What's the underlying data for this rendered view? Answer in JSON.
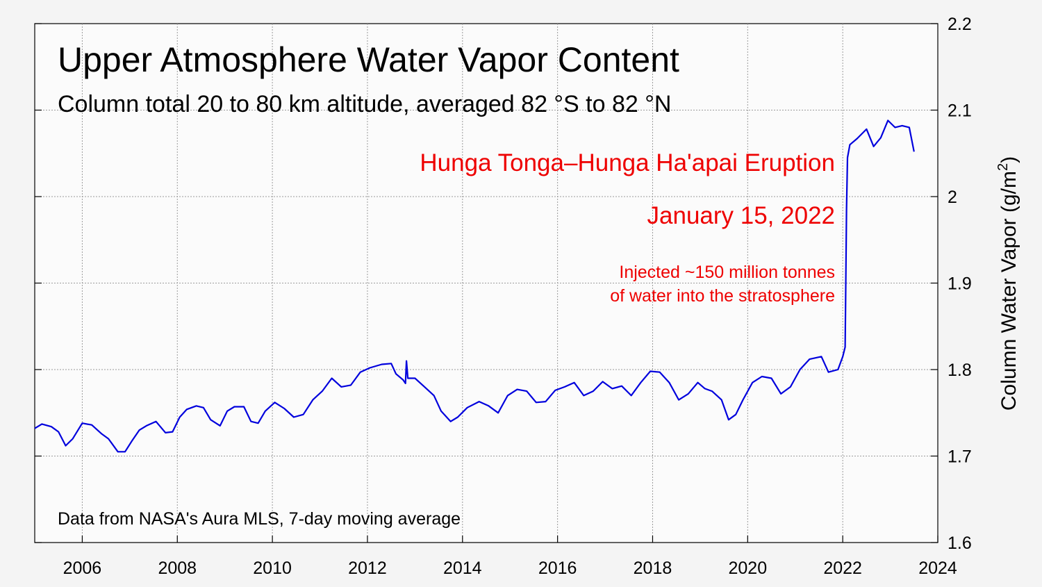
{
  "chart_data": {
    "type": "line",
    "title": "Upper Atmosphere Water Vapor Content",
    "subtitle": "Column total 20 to 80 km altitude, averaged 82 °S to 82 °N",
    "ylabel": "Column Water Vapor (g/m",
    "ylabel_sup": "2",
    "ylabel_close": ")",
    "xlim": [
      2005,
      2024
    ],
    "ylim": [
      1.6,
      2.2
    ],
    "x_ticks": [
      "2006",
      "2008",
      "2010",
      "2012",
      "2014",
      "2016",
      "2018",
      "2020",
      "2022",
      "2024"
    ],
    "y_ticks": [
      "1.6",
      "1.7",
      "1.8",
      "1.9",
      "2",
      "2.1",
      "2.2"
    ],
    "grid": true,
    "line_color": "#0000dd",
    "annotation_color": "#ee0000",
    "annotations": [
      "Hunga Tonga–Hunga Ha'apai Eruption",
      "January 15, 2022",
      "Injected ~150 million tonnes",
      "of water into the stratosphere"
    ],
    "footnote": "Data from NASA's Aura MLS, 7-day moving average",
    "series": [
      {
        "x": [
          2005.0,
          2005.15,
          2005.35,
          2005.5,
          2005.65,
          2005.8,
          2006.0,
          2006.2,
          2006.4,
          2006.55,
          2006.75,
          2006.9,
          2007.05,
          2007.2,
          2007.35,
          2007.55,
          2007.75,
          2007.9,
          2008.05,
          2008.2,
          2008.4,
          2008.55,
          2008.7,
          2008.9,
          2009.05,
          2009.2,
          2009.4,
          2009.55,
          2009.7,
          2009.85,
          2010.05,
          2010.25,
          2010.45,
          2010.65,
          2010.85,
          2011.05,
          2011.25,
          2011.45,
          2011.65,
          2011.85,
          2012.05,
          2012.3,
          2012.5,
          2012.6,
          2012.75,
          2012.8,
          2012.82,
          2012.85,
          2013.0,
          2013.2,
          2013.4,
          2013.55,
          2013.75,
          2013.9,
          2014.1,
          2014.35,
          2014.55,
          2014.75,
          2014.95,
          2015.15,
          2015.35,
          2015.55,
          2015.75,
          2015.95,
          2016.15,
          2016.35,
          2016.55,
          2016.75,
          2016.95,
          2017.15,
          2017.35,
          2017.55,
          2017.75,
          2017.95,
          2018.15,
          2018.35,
          2018.55,
          2018.75,
          2018.95,
          2019.1,
          2019.25,
          2019.45,
          2019.6,
          2019.75,
          2019.9,
          2020.1,
          2020.3,
          2020.5,
          2020.7,
          2020.9,
          2021.1,
          2021.3,
          2021.55,
          2021.7,
          2021.9,
          2022.0,
          2022.05,
          2022.06,
          2022.08,
          2022.1,
          2022.15,
          2022.3,
          2022.5,
          2022.65,
          2022.8,
          2022.95,
          2023.1,
          2023.25,
          2023.4,
          2023.5
        ],
        "y": [
          1.732,
          1.737,
          1.734,
          1.728,
          1.712,
          1.72,
          1.738,
          1.736,
          1.726,
          1.72,
          1.705,
          1.705,
          1.718,
          1.73,
          1.735,
          1.74,
          1.727,
          1.728,
          1.745,
          1.754,
          1.758,
          1.756,
          1.742,
          1.735,
          1.752,
          1.757,
          1.757,
          1.74,
          1.738,
          1.752,
          1.762,
          1.755,
          1.745,
          1.748,
          1.765,
          1.775,
          1.79,
          1.78,
          1.782,
          1.797,
          1.802,
          1.806,
          1.807,
          1.795,
          1.788,
          1.784,
          1.81,
          1.79,
          1.79,
          1.78,
          1.77,
          1.752,
          1.74,
          1.745,
          1.756,
          1.763,
          1.758,
          1.75,
          1.77,
          1.777,
          1.775,
          1.762,
          1.763,
          1.776,
          1.78,
          1.785,
          1.77,
          1.775,
          1.786,
          1.778,
          1.781,
          1.77,
          1.785,
          1.798,
          1.797,
          1.785,
          1.765,
          1.772,
          1.785,
          1.778,
          1.775,
          1.765,
          1.742,
          1.748,
          1.765,
          1.785,
          1.792,
          1.79,
          1.772,
          1.78,
          1.8,
          1.812,
          1.815,
          1.797,
          1.8,
          1.815,
          1.826,
          1.88,
          1.985,
          2.045,
          2.06,
          2.067,
          2.078,
          2.058,
          2.068,
          2.088,
          2.08,
          2.082,
          2.08,
          2.052
        ]
      }
    ]
  }
}
